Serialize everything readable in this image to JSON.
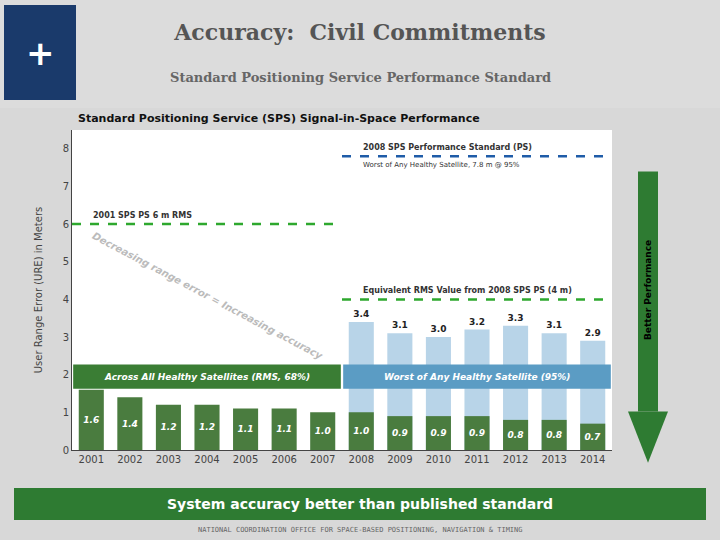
{
  "chart_data": {
    "type": "bar",
    "title": "Accuracy:  Civil Commitments",
    "subtitle": "Standard Positioning Service Performance Standard",
    "plot_title": "Standard Positioning Service (SPS) Signal-in-Space Performance",
    "ylabel": "User Range Error (URE) in Meters",
    "categories": [
      "2001",
      "2002",
      "2003",
      "2004",
      "2005",
      "2006",
      "2007",
      "2008",
      "2009",
      "2010",
      "2011",
      "2012",
      "2013",
      "2014"
    ],
    "series": [
      {
        "name": "Worst of Any Healthy Satellite (95%)",
        "color": "#B8D4E8",
        "values": [
          null,
          null,
          null,
          null,
          null,
          null,
          null,
          3.4,
          3.1,
          3.0,
          3.2,
          3.3,
          3.1,
          2.9
        ],
        "value_labels": [
          null,
          null,
          null,
          null,
          null,
          null,
          null,
          "3.4",
          "3.1",
          "3.0",
          "3.2",
          "3.3",
          "3.1",
          "2.9"
        ]
      },
      {
        "name": "Across All Healthy Satellites (RMS, 68%)",
        "color": "#4A7C3F",
        "values": [
          1.6,
          1.4,
          1.2,
          1.2,
          1.1,
          1.1,
          1.0,
          1.0,
          0.9,
          0.9,
          0.9,
          0.8,
          0.8,
          0.7
        ],
        "value_labels": [
          "1.6",
          "1.4",
          "1.2",
          "1.2",
          "1.1",
          "1.1",
          "1.0",
          "1.0",
          "0.9",
          "0.9",
          "0.9",
          "0.8",
          "0.8",
          "0.7"
        ]
      }
    ],
    "ylim": [
      0,
      8.5
    ],
    "yticks": [
      0,
      1,
      2,
      3,
      4,
      5,
      6,
      7,
      8
    ],
    "grid": false,
    "data_labels": true,
    "reference_lines": [
      {
        "y": 6.0,
        "color": "#2EA82E",
        "label": "2001 SPS PS 6 m RMS",
        "from": "2001",
        "to": "2007"
      },
      {
        "y": 7.8,
        "color": "#1F5CA8",
        "label": "2008 SPS Performance Standard (PS)",
        "sublabel": "Worst of Any Healthy Satellite, 7.8 m @ 95%",
        "from": "2008",
        "to": "2014"
      },
      {
        "y": 4.0,
        "color": "#2EA82E",
        "label": "Equivalent RMS Value from 2008 SPS PS (4 m)",
        "from": "2008",
        "to": "2014"
      }
    ],
    "watermark": "Decreasing range error = Increasing accuracy",
    "arrow": {
      "text": "Better Performance",
      "color": "#2E7B32"
    },
    "banner": {
      "text": "System accuracy better than published standard",
      "color": "#2E7B32"
    },
    "logo": "+",
    "footer": "NATIONAL COORDINATION OFFICE FOR SPACE-BASED POSITIONING, NAVIGATION & TIMING"
  }
}
